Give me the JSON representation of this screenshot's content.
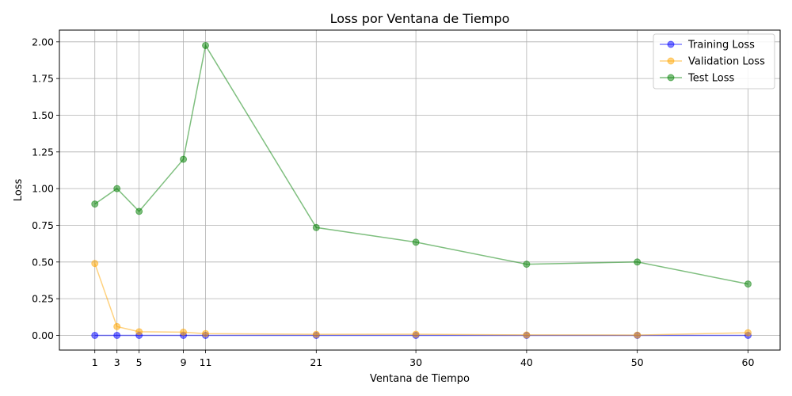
{
  "chart_data": {
    "type": "line",
    "title": "Loss por Ventana de Tiempo",
    "xlabel": "Ventana de Tiempo",
    "ylabel": "Loss",
    "x": [
      1,
      3,
      5,
      9,
      11,
      21,
      30,
      40,
      50,
      60
    ],
    "xticks": [
      "1",
      "3",
      "5",
      "9",
      "11",
      "21",
      "30",
      "40",
      "50",
      "60"
    ],
    "yticks": [
      "0.00",
      "0.25",
      "0.50",
      "0.75",
      "1.00",
      "1.25",
      "1.50",
      "1.75",
      "2.00"
    ],
    "ytick_values": [
      0,
      0.25,
      0.5,
      0.75,
      1.0,
      1.25,
      1.5,
      1.75,
      2.0
    ],
    "xlim": [
      -2.2,
      62.9
    ],
    "ylim": [
      -0.1,
      2.08
    ],
    "grid": true,
    "legend_position": "upper right",
    "series": [
      {
        "name": "Training Loss",
        "color": "#0000ff",
        "values": [
          0.0,
          0.0,
          0.0,
          0.0,
          0.0,
          0.0,
          0.0,
          0.0,
          0.0,
          0.0
        ]
      },
      {
        "name": "Validation Loss",
        "color": "#ffa500",
        "values": [
          0.49,
          0.06,
          0.025,
          0.022,
          0.012,
          0.007,
          0.008,
          0.003,
          0.002,
          0.018
        ]
      },
      {
        "name": "Test Loss",
        "color": "#008000",
        "values": [
          0.895,
          1.0,
          0.845,
          1.2,
          1.975,
          0.735,
          0.635,
          0.485,
          0.5,
          0.35
        ]
      }
    ]
  }
}
